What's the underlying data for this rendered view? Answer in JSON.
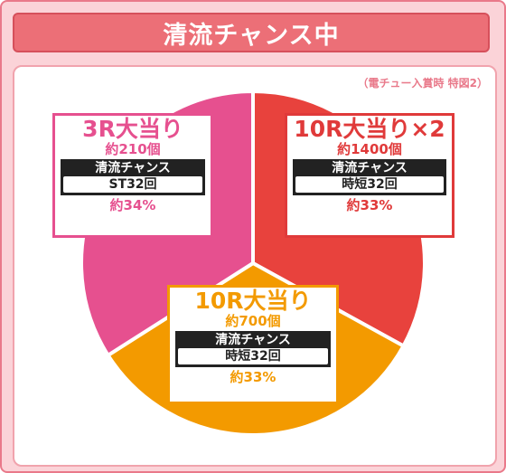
{
  "header": {
    "title": "清流チャンス中"
  },
  "note": "（電チュー入賞時 特図2）",
  "chart_data": {
    "type": "pie",
    "title": "清流チャンス中",
    "subtitle": "（電チュー入賞時 特図2）",
    "slices": [
      {
        "label": "3R大当り",
        "balls": "約210個",
        "mode_label": "清流チャンス",
        "mode_value": "ST32回",
        "percent_text": "約34%",
        "value": 34,
        "color": "#e6508f"
      },
      {
        "label": "10R大当り×2",
        "balls": "約1400個",
        "mode_label": "清流チャンス",
        "mode_value": "時短32回",
        "percent_text": "約33%",
        "value": 33,
        "color": "#e8423d"
      },
      {
        "label": "10R大当り",
        "balls": "約700個",
        "mode_label": "清流チャンス",
        "mode_value": "時短32回",
        "percent_text": "約33%",
        "value": 33,
        "color": "#f39a00"
      }
    ]
  }
}
